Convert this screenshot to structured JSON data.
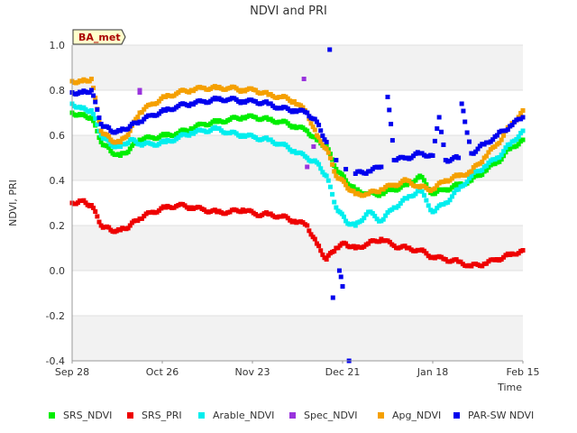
{
  "chart_data": {
    "type": "scatter",
    "title": "NDVI and PRI",
    "xlabel": "Time",
    "ylabel": "NDVI, PRI",
    "station_badge": "BA_met",
    "xlim": [
      "2023-09-28",
      "2024-02-15"
    ],
    "ylim": [
      -0.4,
      1.0
    ],
    "x_ticks": [
      {
        "date": "2023-09-28",
        "label": "Sep 28"
      },
      {
        "date": "2023-10-26",
        "label": "Oct 26"
      },
      {
        "date": "2023-11-23",
        "label": "Nov 23"
      },
      {
        "date": "2023-12-21",
        "label": "Dec 21"
      },
      {
        "date": "2024-01-18",
        "label": "Jan 18"
      },
      {
        "date": "2024-02-15",
        "label": "Feb 15"
      }
    ],
    "y_ticks": [
      -0.4,
      -0.2,
      0.0,
      0.2,
      0.4,
      0.6,
      0.8,
      1.0
    ],
    "grid": "alternating horizontal bands",
    "legend_position": "bottom",
    "series": [
      {
        "name": "SRS_NDVI",
        "color": "#00ee00",
        "points": [
          [
            "2023-09-28",
            0.7
          ],
          [
            "2023-10-01",
            0.69
          ],
          [
            "2023-10-04",
            0.68
          ],
          [
            "2023-10-07",
            0.57
          ],
          [
            "2023-10-10",
            0.53
          ],
          [
            "2023-10-13",
            0.51
          ],
          [
            "2023-10-16",
            0.54
          ],
          [
            "2023-10-19",
            0.58
          ],
          [
            "2023-10-23",
            0.59
          ],
          [
            "2023-10-27",
            0.6
          ],
          [
            "2023-10-31",
            0.61
          ],
          [
            "2023-11-04",
            0.63
          ],
          [
            "2023-11-08",
            0.65
          ],
          [
            "2023-11-12",
            0.66
          ],
          [
            "2023-11-16",
            0.67
          ],
          [
            "2023-11-20",
            0.68
          ],
          [
            "2023-11-24",
            0.68
          ],
          [
            "2023-11-28",
            0.67
          ],
          [
            "2023-12-02",
            0.66
          ],
          [
            "2023-12-06",
            0.64
          ],
          [
            "2023-12-10",
            0.62
          ],
          [
            "2023-12-13",
            0.58
          ],
          [
            "2023-12-16",
            0.55
          ],
          [
            "2023-12-19",
            0.45
          ],
          [
            "2023-12-22",
            0.4
          ],
          [
            "2023-12-25",
            0.36
          ],
          [
            "2023-12-29",
            0.34
          ],
          [
            "2024-01-02",
            0.34
          ],
          [
            "2024-01-06",
            0.36
          ],
          [
            "2024-01-10",
            0.38
          ],
          [
            "2024-01-14",
            0.42
          ],
          [
            "2024-01-18",
            0.34
          ],
          [
            "2024-01-22",
            0.36
          ],
          [
            "2024-01-26",
            0.38
          ],
          [
            "2024-01-30",
            0.4
          ],
          [
            "2024-02-03",
            0.44
          ],
          [
            "2024-02-07",
            0.48
          ],
          [
            "2024-02-11",
            0.54
          ],
          [
            "2024-02-15",
            0.58
          ]
        ]
      },
      {
        "name": "SRS_PRI",
        "color": "#ee0000",
        "points": [
          [
            "2023-09-28",
            0.3
          ],
          [
            "2023-10-01",
            0.31
          ],
          [
            "2023-10-04",
            0.29
          ],
          [
            "2023-10-07",
            0.2
          ],
          [
            "2023-10-10",
            0.18
          ],
          [
            "2023-10-13",
            0.18
          ],
          [
            "2023-10-16",
            0.2
          ],
          [
            "2023-10-19",
            0.23
          ],
          [
            "2023-10-23",
            0.26
          ],
          [
            "2023-10-27",
            0.28
          ],
          [
            "2023-10-31",
            0.29
          ],
          [
            "2023-11-04",
            0.28
          ],
          [
            "2023-11-08",
            0.27
          ],
          [
            "2023-11-12",
            0.26
          ],
          [
            "2023-11-16",
            0.26
          ],
          [
            "2023-11-20",
            0.27
          ],
          [
            "2023-11-24",
            0.25
          ],
          [
            "2023-11-28",
            0.25
          ],
          [
            "2023-12-02",
            0.24
          ],
          [
            "2023-12-06",
            0.22
          ],
          [
            "2023-12-10",
            0.2
          ],
          [
            "2023-12-13",
            0.12
          ],
          [
            "2023-12-16",
            0.05
          ],
          [
            "2023-12-19",
            0.1
          ],
          [
            "2023-12-22",
            0.12
          ],
          [
            "2023-12-25",
            0.1
          ],
          [
            "2023-12-29",
            0.12
          ],
          [
            "2024-01-02",
            0.14
          ],
          [
            "2024-01-06",
            0.11
          ],
          [
            "2024-01-10",
            0.1
          ],
          [
            "2024-01-14",
            0.09
          ],
          [
            "2024-01-18",
            0.06
          ],
          [
            "2024-01-22",
            0.05
          ],
          [
            "2024-01-26",
            0.04
          ],
          [
            "2024-01-30",
            0.02
          ],
          [
            "2024-02-03",
            0.03
          ],
          [
            "2024-02-07",
            0.05
          ],
          [
            "2024-02-11",
            0.07
          ],
          [
            "2024-02-15",
            0.09
          ]
        ]
      },
      {
        "name": "Arable_NDVI",
        "color": "#00eeee",
        "points": [
          [
            "2023-09-28",
            0.74
          ],
          [
            "2023-10-01",
            0.72
          ],
          [
            "2023-10-04",
            0.71
          ],
          [
            "2023-10-07",
            0.6
          ],
          [
            "2023-10-10",
            0.56
          ],
          [
            "2023-10-13",
            0.55
          ],
          [
            "2023-10-16",
            0.58
          ],
          [
            "2023-10-19",
            0.56
          ],
          [
            "2023-10-23",
            0.56
          ],
          [
            "2023-10-27",
            0.57
          ],
          [
            "2023-10-31",
            0.59
          ],
          [
            "2023-11-04",
            0.61
          ],
          [
            "2023-11-08",
            0.62
          ],
          [
            "2023-11-12",
            0.63
          ],
          [
            "2023-11-16",
            0.61
          ],
          [
            "2023-11-20",
            0.6
          ],
          [
            "2023-11-24",
            0.59
          ],
          [
            "2023-11-28",
            0.58
          ],
          [
            "2023-12-02",
            0.56
          ],
          [
            "2023-12-06",
            0.53
          ],
          [
            "2023-12-10",
            0.5
          ],
          [
            "2023-12-13",
            0.48
          ],
          [
            "2023-12-16",
            0.42
          ],
          [
            "2023-12-19",
            0.28
          ],
          [
            "2023-12-22",
            0.22
          ],
          [
            "2023-12-25",
            0.2
          ],
          [
            "2023-12-29",
            0.26
          ],
          [
            "2024-01-02",
            0.22
          ],
          [
            "2024-01-06",
            0.28
          ],
          [
            "2024-01-10",
            0.32
          ],
          [
            "2024-01-14",
            0.36
          ],
          [
            "2024-01-18",
            0.26
          ],
          [
            "2024-01-22",
            0.3
          ],
          [
            "2024-01-26",
            0.36
          ],
          [
            "2024-01-30",
            0.42
          ],
          [
            "2024-02-03",
            0.46
          ],
          [
            "2024-02-07",
            0.5
          ],
          [
            "2024-02-11",
            0.56
          ],
          [
            "2024-02-15",
            0.62
          ]
        ]
      },
      {
        "name": "Spec_NDVI",
        "color": "#9933dd",
        "points": [
          [
            "2023-10-19",
            0.8
          ],
          [
            "2023-10-19",
            0.79
          ],
          [
            "2023-12-09",
            0.85
          ],
          [
            "2023-12-10",
            0.46
          ],
          [
            "2023-12-12",
            0.55
          ]
        ]
      },
      {
        "name": "Apg_NDVI",
        "color": "#f5a000",
        "points": [
          [
            "2023-09-28",
            0.84
          ],
          [
            "2023-10-01",
            0.84
          ],
          [
            "2023-10-04",
            0.85
          ],
          [
            "2023-10-07",
            0.62
          ],
          [
            "2023-10-10",
            0.58
          ],
          [
            "2023-10-13",
            0.57
          ],
          [
            "2023-10-16",
            0.62
          ],
          [
            "2023-10-19",
            0.7
          ],
          [
            "2023-10-23",
            0.74
          ],
          [
            "2023-10-27",
            0.77
          ],
          [
            "2023-10-31",
            0.79
          ],
          [
            "2023-11-04",
            0.8
          ],
          [
            "2023-11-08",
            0.81
          ],
          [
            "2023-11-12",
            0.81
          ],
          [
            "2023-11-16",
            0.81
          ],
          [
            "2023-11-20",
            0.8
          ],
          [
            "2023-11-24",
            0.8
          ],
          [
            "2023-11-28",
            0.78
          ],
          [
            "2023-12-02",
            0.77
          ],
          [
            "2023-12-06",
            0.75
          ],
          [
            "2023-12-10",
            0.7
          ],
          [
            "2023-12-13",
            0.6
          ],
          [
            "2023-12-16",
            0.54
          ],
          [
            "2023-12-19",
            0.42
          ],
          [
            "2023-12-22",
            0.38
          ],
          [
            "2023-12-25",
            0.34
          ],
          [
            "2023-12-29",
            0.34
          ],
          [
            "2024-01-02",
            0.36
          ],
          [
            "2024-01-06",
            0.38
          ],
          [
            "2024-01-10",
            0.4
          ],
          [
            "2024-01-14",
            0.37
          ],
          [
            "2024-01-18",
            0.36
          ],
          [
            "2024-01-22",
            0.4
          ],
          [
            "2024-01-26",
            0.42
          ],
          [
            "2024-01-30",
            0.44
          ],
          [
            "2024-02-03",
            0.5
          ],
          [
            "2024-02-07",
            0.56
          ],
          [
            "2024-02-11",
            0.64
          ],
          [
            "2024-02-15",
            0.71
          ]
        ]
      },
      {
        "name": "PAR-SW NDVI",
        "color": "#0000ee",
        "points": [
          [
            "2023-09-28",
            0.79
          ],
          [
            "2023-10-01",
            0.79
          ],
          [
            "2023-10-04",
            0.8
          ],
          [
            "2023-10-07",
            0.65
          ],
          [
            "2023-10-10",
            0.62
          ],
          [
            "2023-10-13",
            0.62
          ],
          [
            "2023-10-16",
            0.64
          ],
          [
            "2023-10-19",
            0.66
          ],
          [
            "2023-10-23",
            0.69
          ],
          [
            "2023-10-27",
            0.71
          ],
          [
            "2023-10-31",
            0.73
          ],
          [
            "2023-11-04",
            0.74
          ],
          [
            "2023-11-08",
            0.75
          ],
          [
            "2023-11-12",
            0.76
          ],
          [
            "2023-11-16",
            0.76
          ],
          [
            "2023-11-20",
            0.75
          ],
          [
            "2023-11-24",
            0.75
          ],
          [
            "2023-11-28",
            0.74
          ],
          [
            "2023-12-02",
            0.72
          ],
          [
            "2023-12-06",
            0.71
          ],
          [
            "2023-12-10",
            0.7
          ],
          [
            "2023-12-13",
            0.66
          ],
          [
            "2023-12-16",
            0.57
          ],
          [
            "2023-12-17",
            0.98
          ],
          [
            "2023-12-18",
            -0.12
          ],
          [
            "2023-12-19",
            0.49
          ],
          [
            "2023-12-20",
            0.0
          ],
          [
            "2023-12-21",
            -0.07
          ],
          [
            "2023-12-22",
            0.45
          ],
          [
            "2023-12-23",
            -0.4
          ],
          [
            "2023-12-25",
            0.43
          ],
          [
            "2023-12-29",
            0.44
          ],
          [
            "2024-01-02",
            0.46
          ],
          [
            "2024-01-04",
            0.77
          ],
          [
            "2024-01-05",
            0.65
          ],
          [
            "2024-01-06",
            0.49
          ],
          [
            "2024-01-10",
            0.5
          ],
          [
            "2024-01-14",
            0.52
          ],
          [
            "2024-01-18",
            0.51
          ],
          [
            "2024-01-20",
            0.68
          ],
          [
            "2024-01-22",
            0.49
          ],
          [
            "2024-01-26",
            0.5
          ],
          [
            "2024-01-27",
            0.74
          ],
          [
            "2024-01-28",
            0.66
          ],
          [
            "2024-01-30",
            0.52
          ],
          [
            "2024-02-03",
            0.56
          ],
          [
            "2024-02-07",
            0.6
          ],
          [
            "2024-02-11",
            0.64
          ],
          [
            "2024-02-15",
            0.68
          ]
        ]
      }
    ]
  }
}
